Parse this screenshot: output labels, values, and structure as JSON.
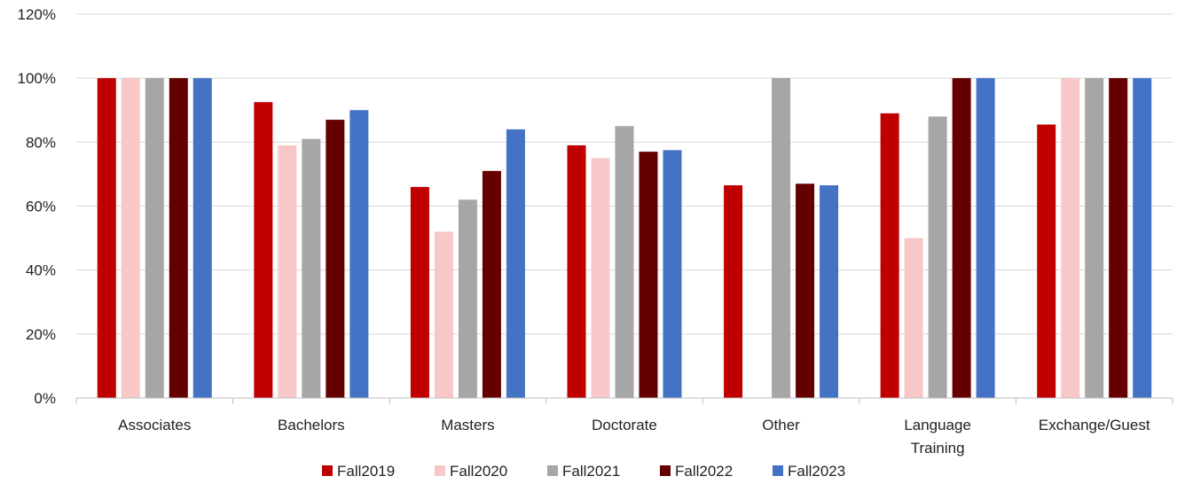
{
  "chart_data": {
    "type": "bar",
    "title": "",
    "xlabel": "",
    "ylabel": "",
    "ylim": [
      0,
      120
    ],
    "y_ticks": [
      "0%",
      "20%",
      "40%",
      "60%",
      "80%",
      "100%",
      "120%"
    ],
    "y_tick_values": [
      0,
      20,
      40,
      60,
      80,
      100,
      120
    ],
    "categories": [
      "Associates",
      "Bachelors",
      "Masters",
      "Doctorate",
      "Other",
      "Language Training",
      "Exchange/Guest"
    ],
    "category_lines": [
      [
        "Associates"
      ],
      [
        "Bachelors"
      ],
      [
        "Masters"
      ],
      [
        "Doctorate"
      ],
      [
        "Other"
      ],
      [
        "Language",
        "Training"
      ],
      [
        "Exchange/Guest"
      ]
    ],
    "grid": true,
    "legend_position": "bottom",
    "series": [
      {
        "name": "Fall2019",
        "color": "#c00000",
        "values": [
          100,
          92.5,
          66,
          79,
          66.5,
          89,
          85.5
        ]
      },
      {
        "name": "Fall2020",
        "color": "#f8c8c8",
        "values": [
          100,
          79,
          52,
          75,
          0,
          50,
          100
        ]
      },
      {
        "name": "Fall2021",
        "color": "#a6a6a6",
        "values": [
          100,
          81,
          62,
          85,
          100,
          88,
          100
        ]
      },
      {
        "name": "Fall2022",
        "color": "#640000",
        "values": [
          100,
          87,
          71,
          77,
          67,
          100,
          100
        ]
      },
      {
        "name": "Fall2023",
        "color": "#4472c4",
        "values": [
          100,
          90,
          84,
          77.5,
          66.5,
          100,
          100
        ]
      }
    ]
  }
}
